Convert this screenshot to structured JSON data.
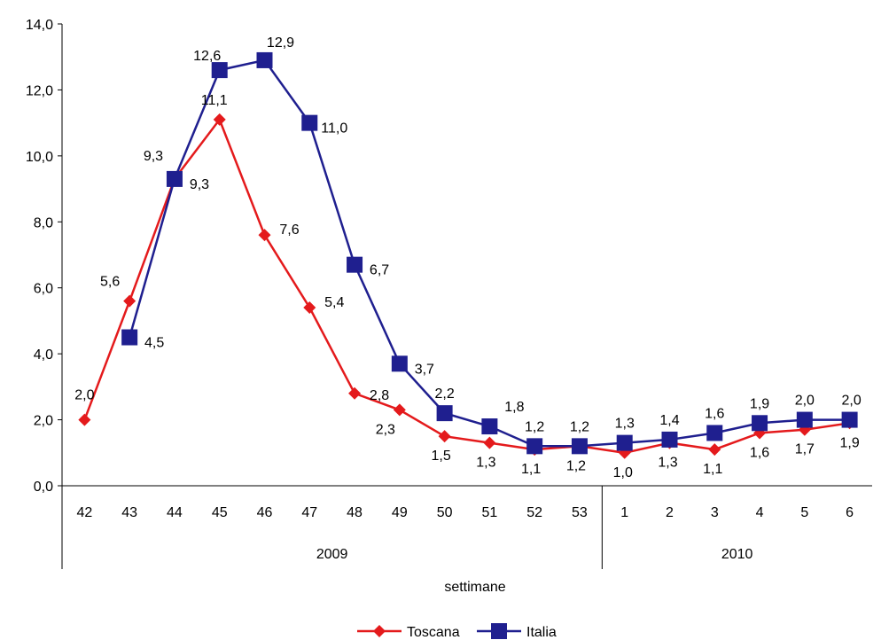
{
  "chart_data": {
    "type": "line",
    "categories": [
      "42",
      "43",
      "44",
      "45",
      "46",
      "47",
      "48",
      "49",
      "50",
      "51",
      "52",
      "53",
      "1",
      "2",
      "3",
      "4",
      "5",
      "6"
    ],
    "groups": [
      {
        "label": "2009",
        "count": 12
      },
      {
        "label": "2010",
        "count": 6
      }
    ],
    "xlabel": "settimane",
    "ylim": [
      0,
      14
    ],
    "yticks": [
      "0,0",
      "2,0",
      "4,0",
      "6,0",
      "8,0",
      "10,0",
      "12,0",
      "14,0"
    ],
    "grid": false,
    "legend": "bottom",
    "series": [
      {
        "name": "Toscana",
        "color": "#E41A1C",
        "marker": "diamond",
        "values": [
          2.0,
          5.6,
          9.3,
          11.1,
          7.6,
          5.4,
          2.8,
          2.3,
          1.5,
          1.3,
          1.1,
          1.2,
          1.0,
          1.3,
          1.1,
          1.6,
          1.7,
          1.9
        ],
        "labels": [
          "2,0",
          "5,6",
          "9,3",
          "11,1",
          "7,6",
          "5,4",
          "2,8",
          "2,3",
          "1,5",
          "1,3",
          "1,1",
          "1,2",
          "1,0",
          "1,3",
          "1,1",
          "1,6",
          "1,7",
          "1,9"
        ]
      },
      {
        "name": "Italia",
        "color": "#1F1F8F",
        "marker": "square",
        "values": [
          null,
          4.5,
          9.3,
          12.6,
          12.9,
          11.0,
          6.7,
          3.7,
          2.2,
          1.8,
          1.2,
          1.2,
          1.3,
          1.4,
          1.6,
          1.9,
          2.0,
          2.0
        ],
        "labels": [
          "",
          "4,5",
          "9,3",
          "12,6",
          "12,9",
          "11,0",
          "6,7",
          "3,7",
          "2,2",
          "1,8",
          "1,2",
          "1,2",
          "1,3",
          "1,4",
          "1,6",
          "1,9",
          "2,0",
          "2,0"
        ]
      }
    ]
  }
}
